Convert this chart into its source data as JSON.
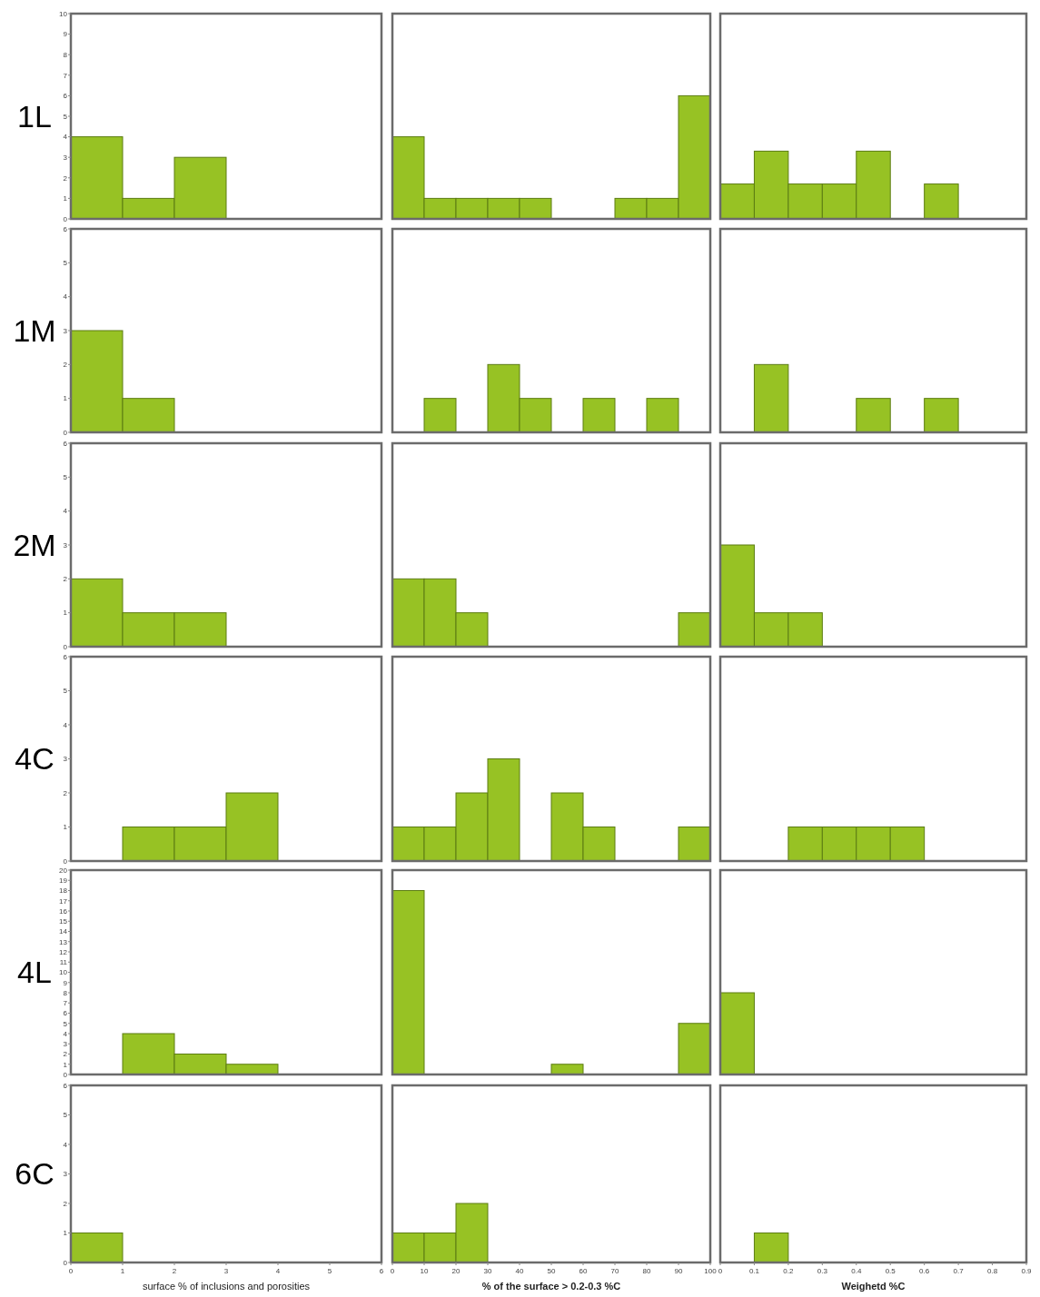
{
  "chart_data": [
    {
      "type": "histogram",
      "ylabel": "1L",
      "bins": [
        0,
        1,
        2,
        3,
        4,
        5,
        6
      ],
      "values": [
        4,
        1,
        3,
        0,
        0,
        0
      ],
      "color": "#97c224",
      "xlim": [
        0,
        6
      ],
      "ylim": [
        0,
        10
      ],
      "yticks": [
        0,
        1,
        2,
        3,
        4,
        5,
        6,
        7,
        8,
        9,
        10
      ],
      "tick_labels": "y"
    },
    {
      "type": "histogram",
      "bins": [
        0,
        10,
        20,
        30,
        40,
        50,
        60,
        70,
        80,
        90,
        100
      ],
      "values": [
        4,
        1,
        1,
        1,
        1,
        0,
        0,
        1,
        1,
        6
      ],
      "color": "#97c224",
      "xlim": [
        0,
        100
      ],
      "ylim": [
        0,
        10
      ],
      "tick_labels": false
    },
    {
      "type": "histogram",
      "bins": [
        0,
        0.1,
        0.2,
        0.3,
        0.4,
        0.5,
        0.6,
        0.7,
        0.8,
        0.9
      ],
      "values": [
        1.7,
        3.3,
        1.7,
        1.7,
        3.3,
        0,
        1.7,
        0,
        0
      ],
      "color": "#97c224",
      "xlim": [
        0,
        0.9
      ],
      "ylim": [
        0,
        10
      ],
      "tick_labels": false
    },
    {
      "type": "histogram",
      "ylabel": "1M",
      "bins": [
        0,
        1,
        2,
        3,
        4,
        5,
        6
      ],
      "values": [
        3,
        1,
        0,
        0,
        0,
        0
      ],
      "color": "#97c224",
      "xlim": [
        0,
        6
      ],
      "ylim": [
        0,
        6
      ],
      "yticks": [
        0,
        1,
        2,
        3,
        4,
        5,
        6
      ],
      "tick_labels": "y"
    },
    {
      "type": "histogram",
      "bins": [
        0,
        10,
        20,
        30,
        40,
        50,
        60,
        70,
        80,
        90,
        100
      ],
      "values": [
        0,
        1,
        0,
        2,
        1,
        0,
        1,
        0,
        1,
        0
      ],
      "color": "#97c224",
      "xlim": [
        0,
        100
      ],
      "ylim": [
        0,
        6
      ],
      "tick_labels": false
    },
    {
      "type": "histogram",
      "bins": [
        0,
        0.1,
        0.2,
        0.3,
        0.4,
        0.5,
        0.6,
        0.7,
        0.8,
        0.9
      ],
      "values": [
        0,
        2,
        0,
        0,
        1,
        0,
        1,
        0,
        0
      ],
      "color": "#97c224",
      "xlim": [
        0,
        0.9
      ],
      "ylim": [
        0,
        6
      ],
      "tick_labels": false
    },
    {
      "type": "histogram",
      "ylabel": "2M",
      "bins": [
        0,
        1,
        2,
        3,
        4,
        5,
        6
      ],
      "values": [
        2,
        1,
        1,
        0,
        0,
        0
      ],
      "color": "#97c224",
      "xlim": [
        0,
        6
      ],
      "ylim": [
        0,
        6
      ],
      "yticks": [
        0,
        1,
        2,
        3,
        4,
        5,
        6
      ],
      "tick_labels": "y"
    },
    {
      "type": "histogram",
      "bins": [
        0,
        10,
        20,
        30,
        40,
        50,
        60,
        70,
        80,
        90,
        100
      ],
      "values": [
        2,
        2,
        1,
        0,
        0,
        0,
        0,
        0,
        0,
        1
      ],
      "color": "#97c224",
      "xlim": [
        0,
        100
      ],
      "ylim": [
        0,
        6
      ],
      "tick_labels": false
    },
    {
      "type": "histogram",
      "bins": [
        0,
        0.1,
        0.2,
        0.3,
        0.4,
        0.5,
        0.6,
        0.7,
        0.8,
        0.9
      ],
      "values": [
        3,
        1,
        1,
        0,
        0,
        0,
        0,
        0,
        0
      ],
      "color": "#97c224",
      "xlim": [
        0,
        0.9
      ],
      "ylim": [
        0,
        6
      ],
      "tick_labels": false
    },
    {
      "type": "histogram",
      "ylabel": "4C",
      "bins": [
        0,
        1,
        2,
        3,
        4,
        5,
        6
      ],
      "values": [
        0,
        1,
        1,
        2,
        0,
        0
      ],
      "color": "#97c224",
      "xlim": [
        0,
        6
      ],
      "ylim": [
        0,
        6
      ],
      "yticks": [
        0,
        1,
        2,
        3,
        4,
        5,
        6
      ],
      "tick_labels": "y"
    },
    {
      "type": "histogram",
      "bins": [
        0,
        10,
        20,
        30,
        40,
        50,
        60,
        70,
        80,
        90,
        100
      ],
      "values": [
        1,
        1,
        2,
        3,
        0,
        2,
        1,
        0,
        0,
        1
      ],
      "color": "#97c224",
      "xlim": [
        0,
        100
      ],
      "ylim": [
        0,
        6
      ],
      "tick_labels": false
    },
    {
      "type": "histogram",
      "bins": [
        0,
        0.1,
        0.2,
        0.3,
        0.4,
        0.5,
        0.6,
        0.7,
        0.8,
        0.9
      ],
      "values": [
        0,
        0,
        1,
        1,
        1,
        1,
        0,
        0,
        0
      ],
      "color": "#97c224",
      "xlim": [
        0,
        0.9
      ],
      "ylim": [
        0,
        6
      ],
      "tick_labels": false
    },
    {
      "type": "histogram",
      "ylabel": "4L",
      "bins": [
        0,
        1,
        2,
        3,
        4,
        5,
        6
      ],
      "values": [
        0,
        4,
        2,
        1,
        0,
        0
      ],
      "color": "#97c224",
      "xlim": [
        0,
        6
      ],
      "ylim": [
        0,
        20
      ],
      "yticks": [
        0,
        1,
        2,
        3,
        4,
        5,
        6,
        7,
        8,
        9,
        10,
        11,
        12,
        13,
        14,
        15,
        16,
        17,
        18,
        19,
        20
      ],
      "tick_labels": "y"
    },
    {
      "type": "histogram",
      "bins": [
        0,
        10,
        20,
        30,
        40,
        50,
        60,
        70,
        80,
        90,
        100
      ],
      "values": [
        18,
        0,
        0,
        0,
        0,
        1,
        0,
        0,
        0,
        5
      ],
      "color": "#97c224",
      "xlim": [
        0,
        100
      ],
      "ylim": [
        0,
        20
      ],
      "tick_labels": false
    },
    {
      "type": "histogram",
      "bins": [
        0,
        0.1,
        0.2,
        0.3,
        0.4,
        0.5,
        0.6,
        0.7,
        0.8,
        0.9
      ],
      "values": [
        8,
        0,
        0,
        0,
        0,
        0,
        0,
        0,
        0
      ],
      "color": "#97c224",
      "xlim": [
        0,
        0.9
      ],
      "ylim": [
        0,
        20
      ],
      "tick_labels": false
    },
    {
      "type": "histogram",
      "ylabel": "6C",
      "xlabel": "surface % of inclusions and porosities",
      "bins": [
        0,
        1,
        2,
        3,
        4,
        5,
        6
      ],
      "values": [
        1,
        0,
        0,
        0,
        0,
        0
      ],
      "color": "#97c224",
      "xlim": [
        0,
        6
      ],
      "ylim": [
        0,
        6
      ],
      "xticks": [
        0,
        1,
        2,
        3,
        4,
        5,
        6
      ],
      "yticks": [
        0,
        1,
        2,
        3,
        4,
        5,
        6
      ]
    },
    {
      "type": "histogram",
      "xlabel": "% of the surface > 0.2-0.3 %C",
      "bins": [
        0,
        10,
        20,
        30,
        40,
        50,
        60,
        70,
        80,
        90,
        100
      ],
      "values": [
        1,
        1,
        2,
        0,
        0,
        0,
        0,
        0,
        0,
        0
      ],
      "color": "#97c224",
      "xlim": [
        0,
        100
      ],
      "ylim": [
        0,
        6
      ],
      "xticks": [
        0,
        10,
        20,
        30,
        40,
        50,
        60,
        70,
        80,
        90,
        100
      ],
      "tick_labels": "x"
    },
    {
      "type": "histogram",
      "xlabel": "Weighetd %C",
      "bins": [
        0,
        0.1,
        0.2,
        0.3,
        0.4,
        0.5,
        0.6,
        0.7,
        0.8,
        0.9
      ],
      "values": [
        0,
        1,
        0,
        0,
        0,
        0,
        0,
        0,
        0
      ],
      "color": "#97c224",
      "xlim": [
        0,
        0.9
      ],
      "ylim": [
        0,
        6
      ],
      "xticks": [
        0,
        0.1,
        0.2,
        0.3,
        0.4,
        0.5,
        0.6,
        0.7,
        0.8,
        0.9
      ],
      "tick_labels": "x"
    }
  ]
}
